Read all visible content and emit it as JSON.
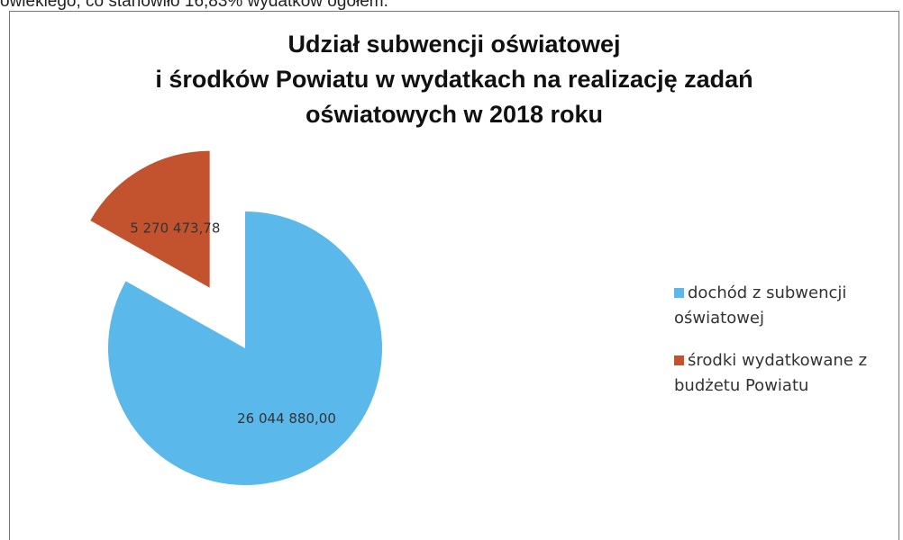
{
  "header_text": "owiekiego, co stanowiło 16,83% wydatków ogółem.",
  "chart_data": {
    "type": "pie",
    "title": "Udział subwencji oświatowej\ni środków Powiatu w wydatkach na realizację zadań\noświatowych w 2018 roku",
    "categories": [
      "dochód z subwencji oświatowej",
      "środki wydatkowane z budżetu Powiatu"
    ],
    "values": [
      26044880.0,
      5270473.78
    ],
    "value_labels": [
      "26 044 880,00",
      "5 270 473,78"
    ],
    "colors": [
      "#5ab9ea",
      "#c2532e"
    ],
    "exploded": [
      false,
      true
    ],
    "legend": "right"
  }
}
